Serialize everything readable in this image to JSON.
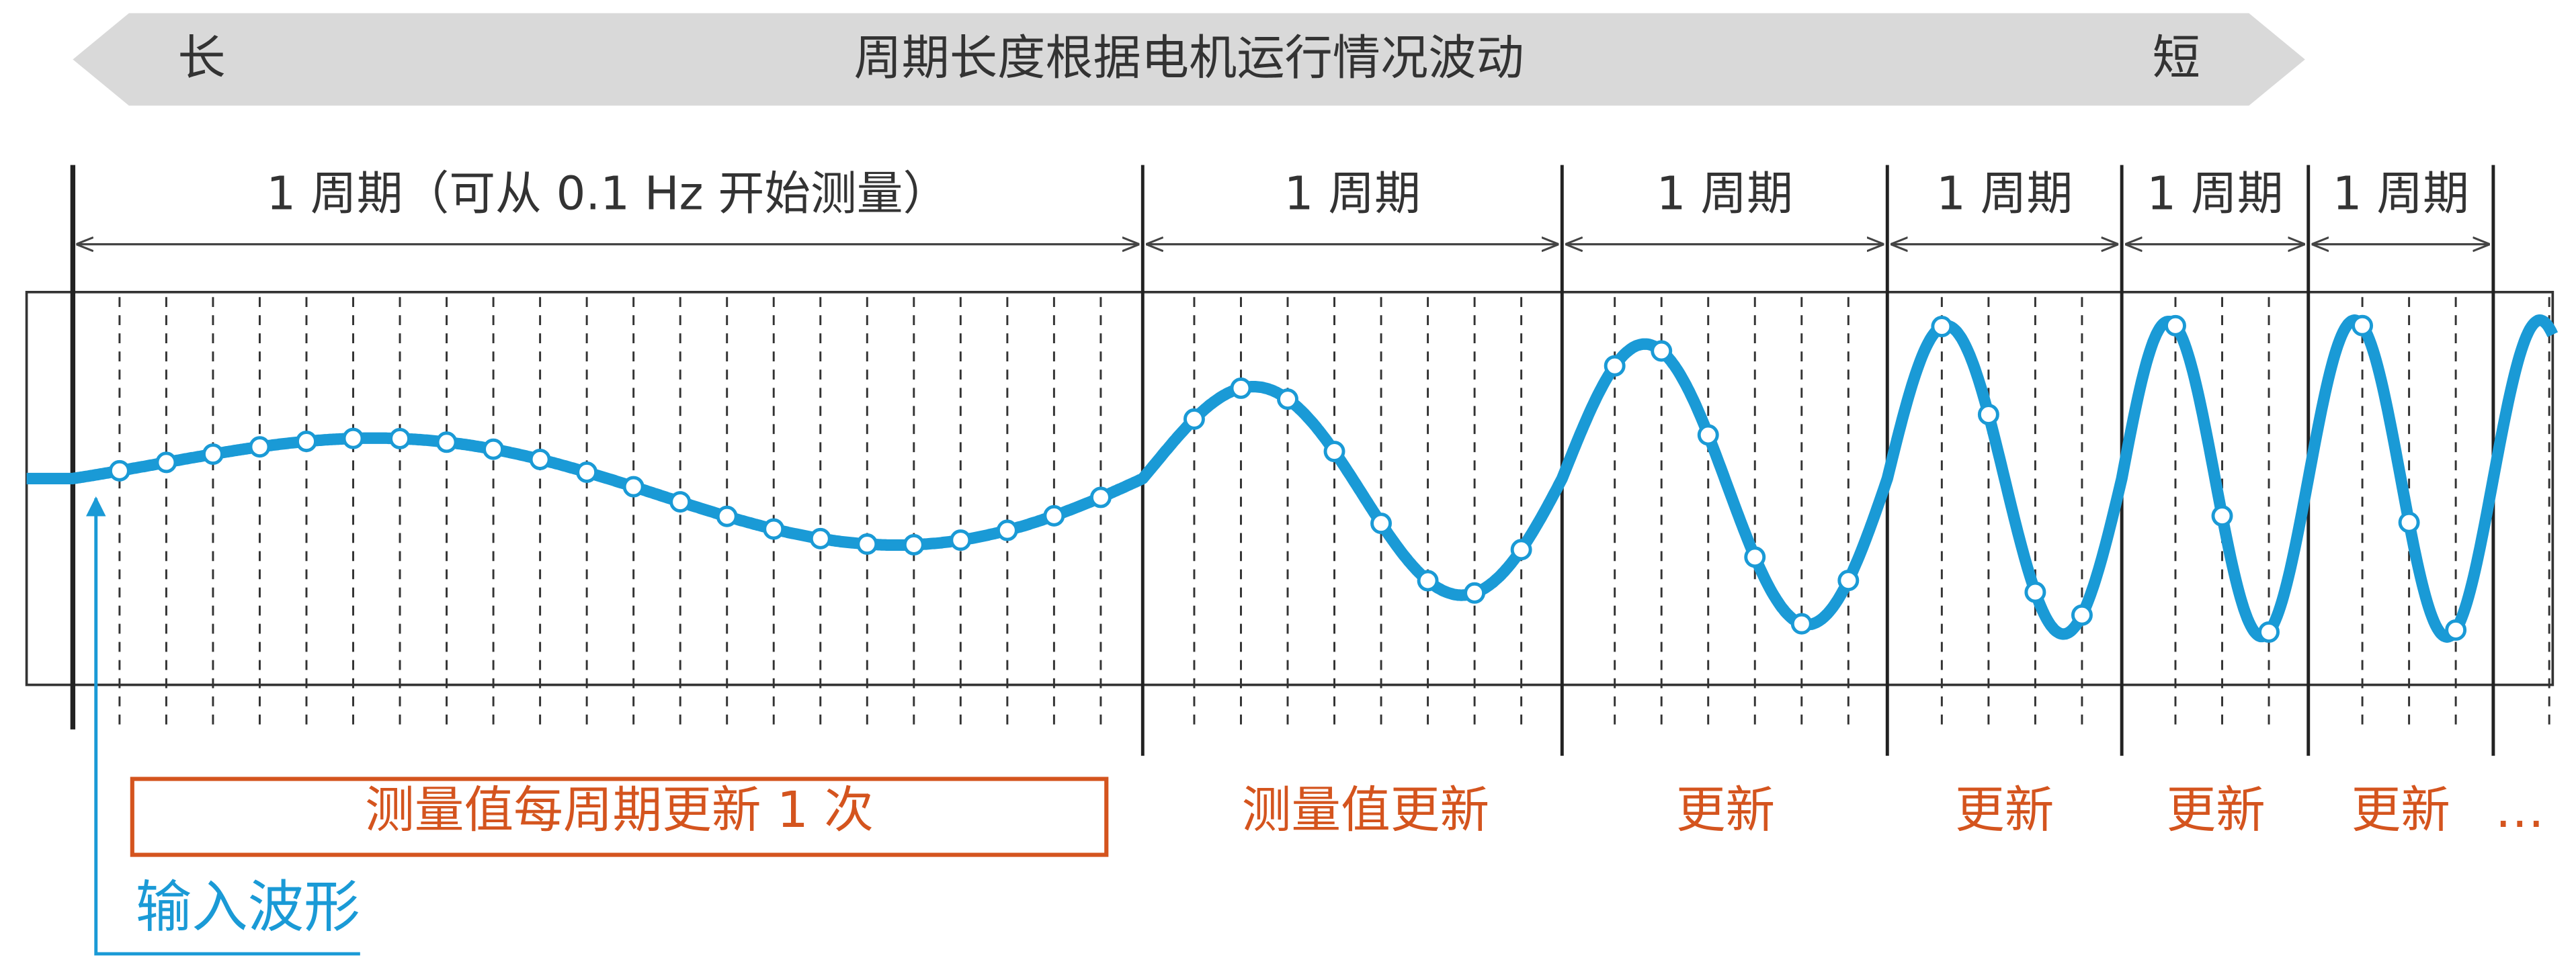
{
  "header": {
    "left": "长",
    "title": "周期长度根据电机运行情况波动",
    "right": "短"
  },
  "periods": [
    "1 周期（可从 0.1 Hz 开始测量）",
    "1 周期",
    "1 周期",
    "1 周期",
    "1 周期",
    "1 周期"
  ],
  "updates": [
    "测量值每周期更新 1 次",
    "测量值更新",
    "更新",
    "更新",
    "更新",
    "更新",
    "…"
  ],
  "input_label": "输入波形"
}
